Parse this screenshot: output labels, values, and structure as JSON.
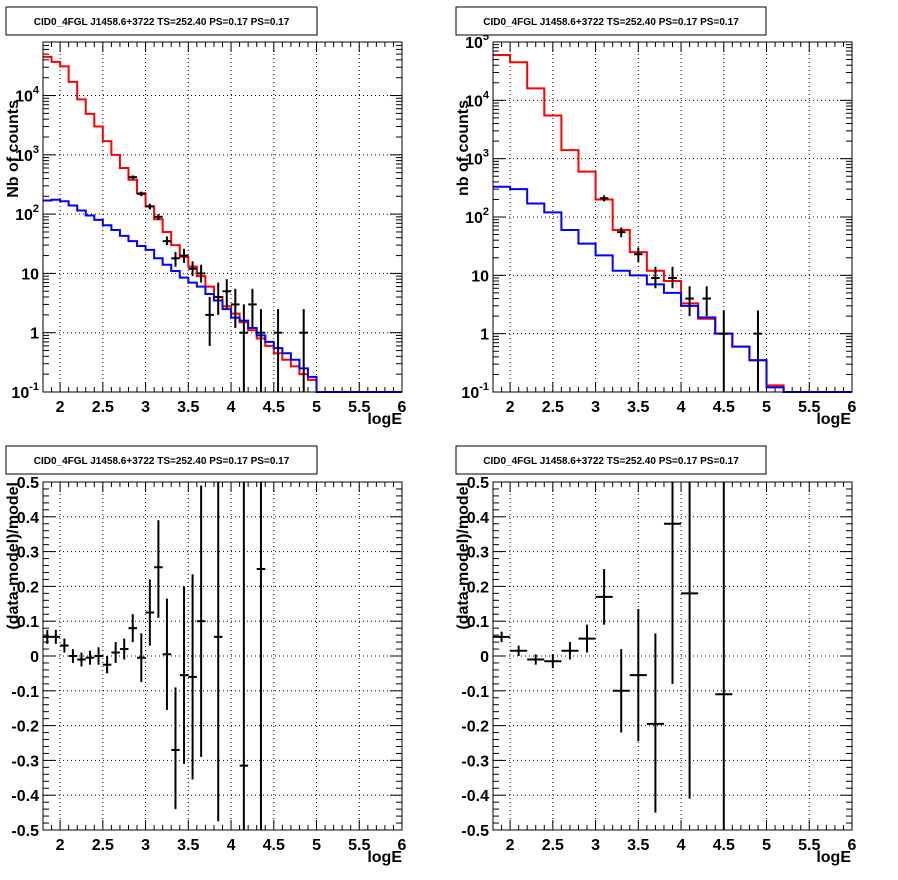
{
  "chart_data": [
    {
      "type": "line",
      "title": "CID0_4FGL J1458.6+3722 TS=252.40 PS=0.17 PS=0.17",
      "xlabel": "logE",
      "ylabel": "Nb of counts",
      "xlim": [
        1.8,
        6
      ],
      "ylim": [
        0.1,
        80000
      ],
      "yscale": "log",
      "grid": true,
      "xticks": [
        2,
        2.5,
        3,
        3.5,
        4,
        4.5,
        5,
        5.5,
        6
      ],
      "xtick_labels": [
        "2",
        "2.5",
        "3",
        "3.5",
        "4",
        "4.5",
        "5",
        "5.5",
        "6"
      ],
      "yticks": [
        0.1,
        1,
        10,
        100,
        1000,
        10000
      ],
      "ytick_labels": [
        "10^-1",
        "1",
        "10",
        "10^2",
        "10^3",
        "10^4"
      ],
      "bin_edges": [
        1.8,
        1.9,
        2.0,
        2.1,
        2.2,
        2.3,
        2.4,
        2.5,
        2.6,
        2.7,
        2.8,
        2.9,
        3.0,
        3.1,
        3.2,
        3.3,
        3.4,
        3.5,
        3.6,
        3.7,
        3.8,
        3.9,
        4.0,
        4.1,
        4.2,
        4.3,
        4.4,
        4.5,
        4.6,
        4.7,
        4.8,
        4.9,
        5.0,
        5.1,
        5.2,
        5.3,
        5.4,
        5.5,
        5.6,
        5.7,
        5.8,
        5.9,
        6.0
      ],
      "series": [
        {
          "color": "#ff0000",
          "values": [
            45000,
            37000,
            31000,
            17000,
            8600,
            4900,
            3000,
            1700,
            1000,
            600,
            380,
            225,
            135,
            82,
            50,
            30,
            19,
            13,
            9,
            6,
            4,
            2.8,
            2.1,
            1.5,
            1.1,
            0.8,
            0.6,
            0.45,
            0.35,
            0.27,
            0.2,
            0.16,
            0.1,
            0.1,
            0.1,
            0.1,
            0.1,
            0.1,
            0.1,
            0.1,
            0.1,
            0.1
          ]
        },
        {
          "color": "#0000ff",
          "values": [
            170,
            175,
            165,
            140,
            115,
            95,
            80,
            65,
            54,
            43,
            35,
            29,
            25,
            18,
            14,
            11,
            8.5,
            7,
            6,
            4.5,
            3.5,
            2.5,
            1.8,
            1.6,
            1.2,
            0.9,
            0.7,
            0.55,
            0.45,
            0.35,
            0.25,
            0.18,
            0.1,
            0.1,
            0.1,
            0.1,
            0.1,
            0.1,
            0.1,
            0.1,
            0.1,
            0.1
          ]
        }
      ],
      "data_points": [
        {
          "x": 2.85,
          "y": 420,
          "ylo": 390,
          "yhi": 450
        },
        {
          "x": 2.95,
          "y": 220,
          "ylo": 200,
          "yhi": 240
        },
        {
          "x": 3.05,
          "y": 135,
          "ylo": 120,
          "yhi": 150
        },
        {
          "x": 3.15,
          "y": 90,
          "ylo": 80,
          "yhi": 100
        },
        {
          "x": 3.25,
          "y": 35,
          "ylo": 30,
          "yhi": 42
        },
        {
          "x": 3.35,
          "y": 18,
          "ylo": 13,
          "yhi": 23
        },
        {
          "x": 3.45,
          "y": 20,
          "ylo": 15,
          "yhi": 26
        },
        {
          "x": 3.55,
          "y": 12,
          "ylo": 9,
          "yhi": 16
        },
        {
          "x": 3.65,
          "y": 10,
          "ylo": 7,
          "yhi": 14
        },
        {
          "x": 3.75,
          "y": 2,
          "ylo": 0.6,
          "yhi": 4
        },
        {
          "x": 3.85,
          "y": 4,
          "ylo": 2,
          "yhi": 7
        },
        {
          "x": 3.95,
          "y": 5,
          "ylo": 2.5,
          "yhi": 8
        },
        {
          "x": 4.05,
          "y": 3,
          "ylo": 1.2,
          "yhi": 5.5
        },
        {
          "x": 4.15,
          "y": 1,
          "ylo": 0.1,
          "yhi": 3
        },
        {
          "x": 4.25,
          "y": 3,
          "ylo": 1.2,
          "yhi": 5.5
        },
        {
          "x": 4.35,
          "y": 1,
          "ylo": 0.1,
          "yhi": 2.5
        },
        {
          "x": 4.55,
          "y": 1,
          "ylo": 0.1,
          "yhi": 2.5
        },
        {
          "x": 4.85,
          "y": 1,
          "ylo": 0.1,
          "yhi": 2.5
        }
      ]
    },
    {
      "type": "line",
      "title": "CID0_4FGL J1458.6+3722 TS=252.40 PS=0.17 PS=0.17",
      "xlabel": "logE",
      "ylabel": "nb of counts",
      "xlim": [
        1.8,
        6
      ],
      "ylim": [
        0.1,
        100000
      ],
      "yscale": "log",
      "grid": true,
      "xticks": [
        2,
        2.5,
        3,
        3.5,
        4,
        4.5,
        5,
        5.5,
        6
      ],
      "xtick_labels": [
        "2",
        "2.5",
        "3",
        "3.5",
        "4",
        "4.5",
        "5",
        "5.5",
        "6"
      ],
      "yticks": [
        0.1,
        1,
        10,
        100,
        1000,
        10000,
        100000
      ],
      "ytick_labels": [
        "10^-1",
        "1",
        "10",
        "10^2",
        "10^3",
        "10^4",
        "10^5"
      ],
      "bin_edges": [
        1.8,
        2.0,
        2.2,
        2.4,
        2.6,
        2.8,
        3.0,
        3.2,
        3.4,
        3.6,
        3.8,
        4.0,
        4.2,
        4.4,
        4.6,
        4.8,
        5.0,
        5.2,
        5.4,
        5.6,
        5.8,
        6.0
      ],
      "series": [
        {
          "color": "#ff0000",
          "values": [
            60000,
            45000,
            16000,
            5500,
            1400,
            600,
            200,
            60,
            25,
            12,
            8,
            3.3,
            1.8,
            1,
            0.6,
            0.35,
            0.13,
            0.1,
            0.1,
            0.1,
            0.1
          ]
        },
        {
          "color": "#0000ff",
          "values": [
            330,
            300,
            170,
            120,
            60,
            35,
            22,
            12,
            10,
            7,
            5,
            3,
            1.9,
            1,
            0.6,
            0.35,
            0.12,
            0.1,
            0.1,
            0.1,
            0.1
          ]
        }
      ],
      "data_points": [
        {
          "x": 3.1,
          "y": 210,
          "ylo": 185,
          "yhi": 235
        },
        {
          "x": 3.3,
          "y": 55,
          "ylo": 45,
          "yhi": 66
        },
        {
          "x": 3.5,
          "y": 23,
          "ylo": 17,
          "yhi": 30
        },
        {
          "x": 3.7,
          "y": 9,
          "ylo": 6,
          "yhi": 14
        },
        {
          "x": 3.9,
          "y": 9,
          "ylo": 6,
          "yhi": 14
        },
        {
          "x": 4.1,
          "y": 4,
          "ylo": 2,
          "yhi": 6.5
        },
        {
          "x": 4.3,
          "y": 4,
          "ylo": 2,
          "yhi": 6.5
        },
        {
          "x": 4.5,
          "y": 1,
          "ylo": 0.1,
          "yhi": 2.5
        },
        {
          "x": 4.9,
          "y": 1,
          "ylo": 0.1,
          "yhi": 2.5
        }
      ]
    },
    {
      "type": "scatter",
      "title": "CID0_4FGL J1458.6+3722 TS=252.40 PS=0.17 PS=0.17",
      "xlabel": "logE",
      "ylabel": "(data-model)/model",
      "xlim": [
        1.8,
        6
      ],
      "ylim": [
        -0.5,
        0.5
      ],
      "grid": true,
      "xticks": [
        2,
        2.5,
        3,
        3.5,
        4,
        4.5,
        5,
        5.5,
        6
      ],
      "xtick_labels": [
        "2",
        "2.5",
        "3",
        "3.5",
        "4",
        "4.5",
        "5",
        "5.5",
        "6"
      ],
      "yticks": [
        -0.5,
        -0.4,
        -0.3,
        -0.2,
        -0.1,
        0,
        0.1,
        0.2,
        0.3,
        0.4,
        0.5
      ],
      "ytick_labels": [
        "-0.5",
        "-0.4",
        "-0.3",
        "-0.2",
        "-0.1",
        "0",
        "0.1",
        "0.2",
        "0.3",
        "0.4",
        "0.5"
      ],
      "xerr": 0.05,
      "points": [
        {
          "x": 1.85,
          "y": 0.055,
          "ylo": 0.035,
          "yhi": 0.075
        },
        {
          "x": 1.95,
          "y": 0.055,
          "ylo": 0.035,
          "yhi": 0.075
        },
        {
          "x": 2.05,
          "y": 0.03,
          "ylo": 0.01,
          "yhi": 0.05
        },
        {
          "x": 2.15,
          "y": 0.0,
          "ylo": -0.02,
          "yhi": 0.02
        },
        {
          "x": 2.25,
          "y": -0.01,
          "ylo": -0.03,
          "yhi": 0.01
        },
        {
          "x": 2.35,
          "y": -0.005,
          "ylo": -0.025,
          "yhi": 0.015
        },
        {
          "x": 2.45,
          "y": 0.0,
          "ylo": -0.025,
          "yhi": 0.025
        },
        {
          "x": 2.55,
          "y": -0.025,
          "ylo": -0.05,
          "yhi": 0.0
        },
        {
          "x": 2.65,
          "y": 0.01,
          "ylo": -0.02,
          "yhi": 0.04
        },
        {
          "x": 2.75,
          "y": 0.02,
          "ylo": -0.01,
          "yhi": 0.05
        },
        {
          "x": 2.85,
          "y": 0.08,
          "ylo": 0.04,
          "yhi": 0.12
        },
        {
          "x": 2.95,
          "y": -0.005,
          "ylo": -0.075,
          "yhi": 0.065
        },
        {
          "x": 3.05,
          "y": 0.125,
          "ylo": 0.03,
          "yhi": 0.22
        },
        {
          "x": 3.15,
          "y": 0.255,
          "ylo": 0.11,
          "yhi": 0.39
        },
        {
          "x": 3.25,
          "y": 0.005,
          "ylo": -0.155,
          "yhi": 0.165
        },
        {
          "x": 3.35,
          "y": -0.27,
          "ylo": -0.44,
          "yhi": -0.09
        },
        {
          "x": 3.45,
          "y": -0.055,
          "ylo": -0.31,
          "yhi": 0.2
        },
        {
          "x": 3.55,
          "y": -0.06,
          "ylo": -0.355,
          "yhi": 0.235
        },
        {
          "x": 3.65,
          "y": 0.1,
          "ylo": -0.29,
          "yhi": 0.49
        },
        {
          "x": 3.85,
          "y": 0.055,
          "ylo": -0.475,
          "yhi": 0.5
        },
        {
          "x": 4.15,
          "y": -0.315,
          "ylo": -0.5,
          "yhi": 0.5
        },
        {
          "x": 4.35,
          "y": 0.25,
          "ylo": -0.5,
          "yhi": 0.5
        }
      ]
    },
    {
      "type": "scatter",
      "title": "CID0_4FGL J1458.6+3722 TS=252.40 PS=0.17 PS=0.17",
      "xlabel": "logE",
      "ylabel": "(data-model)/model",
      "xlim": [
        1.8,
        6
      ],
      "ylim": [
        -0.5,
        0.5
      ],
      "grid": true,
      "xticks": [
        2,
        2.5,
        3,
        3.5,
        4,
        4.5,
        5,
        5.5,
        6
      ],
      "xtick_labels": [
        "2",
        "2.5",
        "3",
        "3.5",
        "4",
        "4.5",
        "5",
        "5.5",
        "6"
      ],
      "yticks": [
        -0.5,
        -0.4,
        -0.3,
        -0.2,
        -0.1,
        0,
        0.1,
        0.2,
        0.3,
        0.4,
        0.5
      ],
      "ytick_labels": [
        "-0.5",
        "-0.4",
        "-0.3",
        "-0.2",
        "-0.1",
        "0",
        "0.1",
        "0.2",
        "0.3",
        "0.4",
        "0.5"
      ],
      "xerr": 0.1,
      "points": [
        {
          "x": 1.9,
          "y": 0.055,
          "ylo": 0.04,
          "yhi": 0.07
        },
        {
          "x": 2.1,
          "y": 0.015,
          "ylo": 0.0,
          "yhi": 0.03
        },
        {
          "x": 2.3,
          "y": -0.01,
          "ylo": -0.025,
          "yhi": 0.005
        },
        {
          "x": 2.5,
          "y": -0.015,
          "ylo": -0.035,
          "yhi": 0.005
        },
        {
          "x": 2.7,
          "y": 0.015,
          "ylo": -0.01,
          "yhi": 0.04
        },
        {
          "x": 2.9,
          "y": 0.05,
          "ylo": 0.01,
          "yhi": 0.09
        },
        {
          "x": 3.1,
          "y": 0.17,
          "ylo": 0.09,
          "yhi": 0.25
        },
        {
          "x": 3.3,
          "y": -0.1,
          "ylo": -0.22,
          "yhi": 0.02
        },
        {
          "x": 3.5,
          "y": -0.055,
          "ylo": -0.245,
          "yhi": 0.135
        },
        {
          "x": 3.7,
          "y": -0.195,
          "ylo": -0.45,
          "yhi": 0.065
        },
        {
          "x": 3.9,
          "y": 0.38,
          "ylo": -0.08,
          "yhi": 0.5
        },
        {
          "x": 4.1,
          "y": 0.18,
          "ylo": -0.41,
          "yhi": 0.5
        },
        {
          "x": 4.5,
          "y": -0.11,
          "ylo": -0.5,
          "yhi": 0.5
        }
      ]
    }
  ]
}
